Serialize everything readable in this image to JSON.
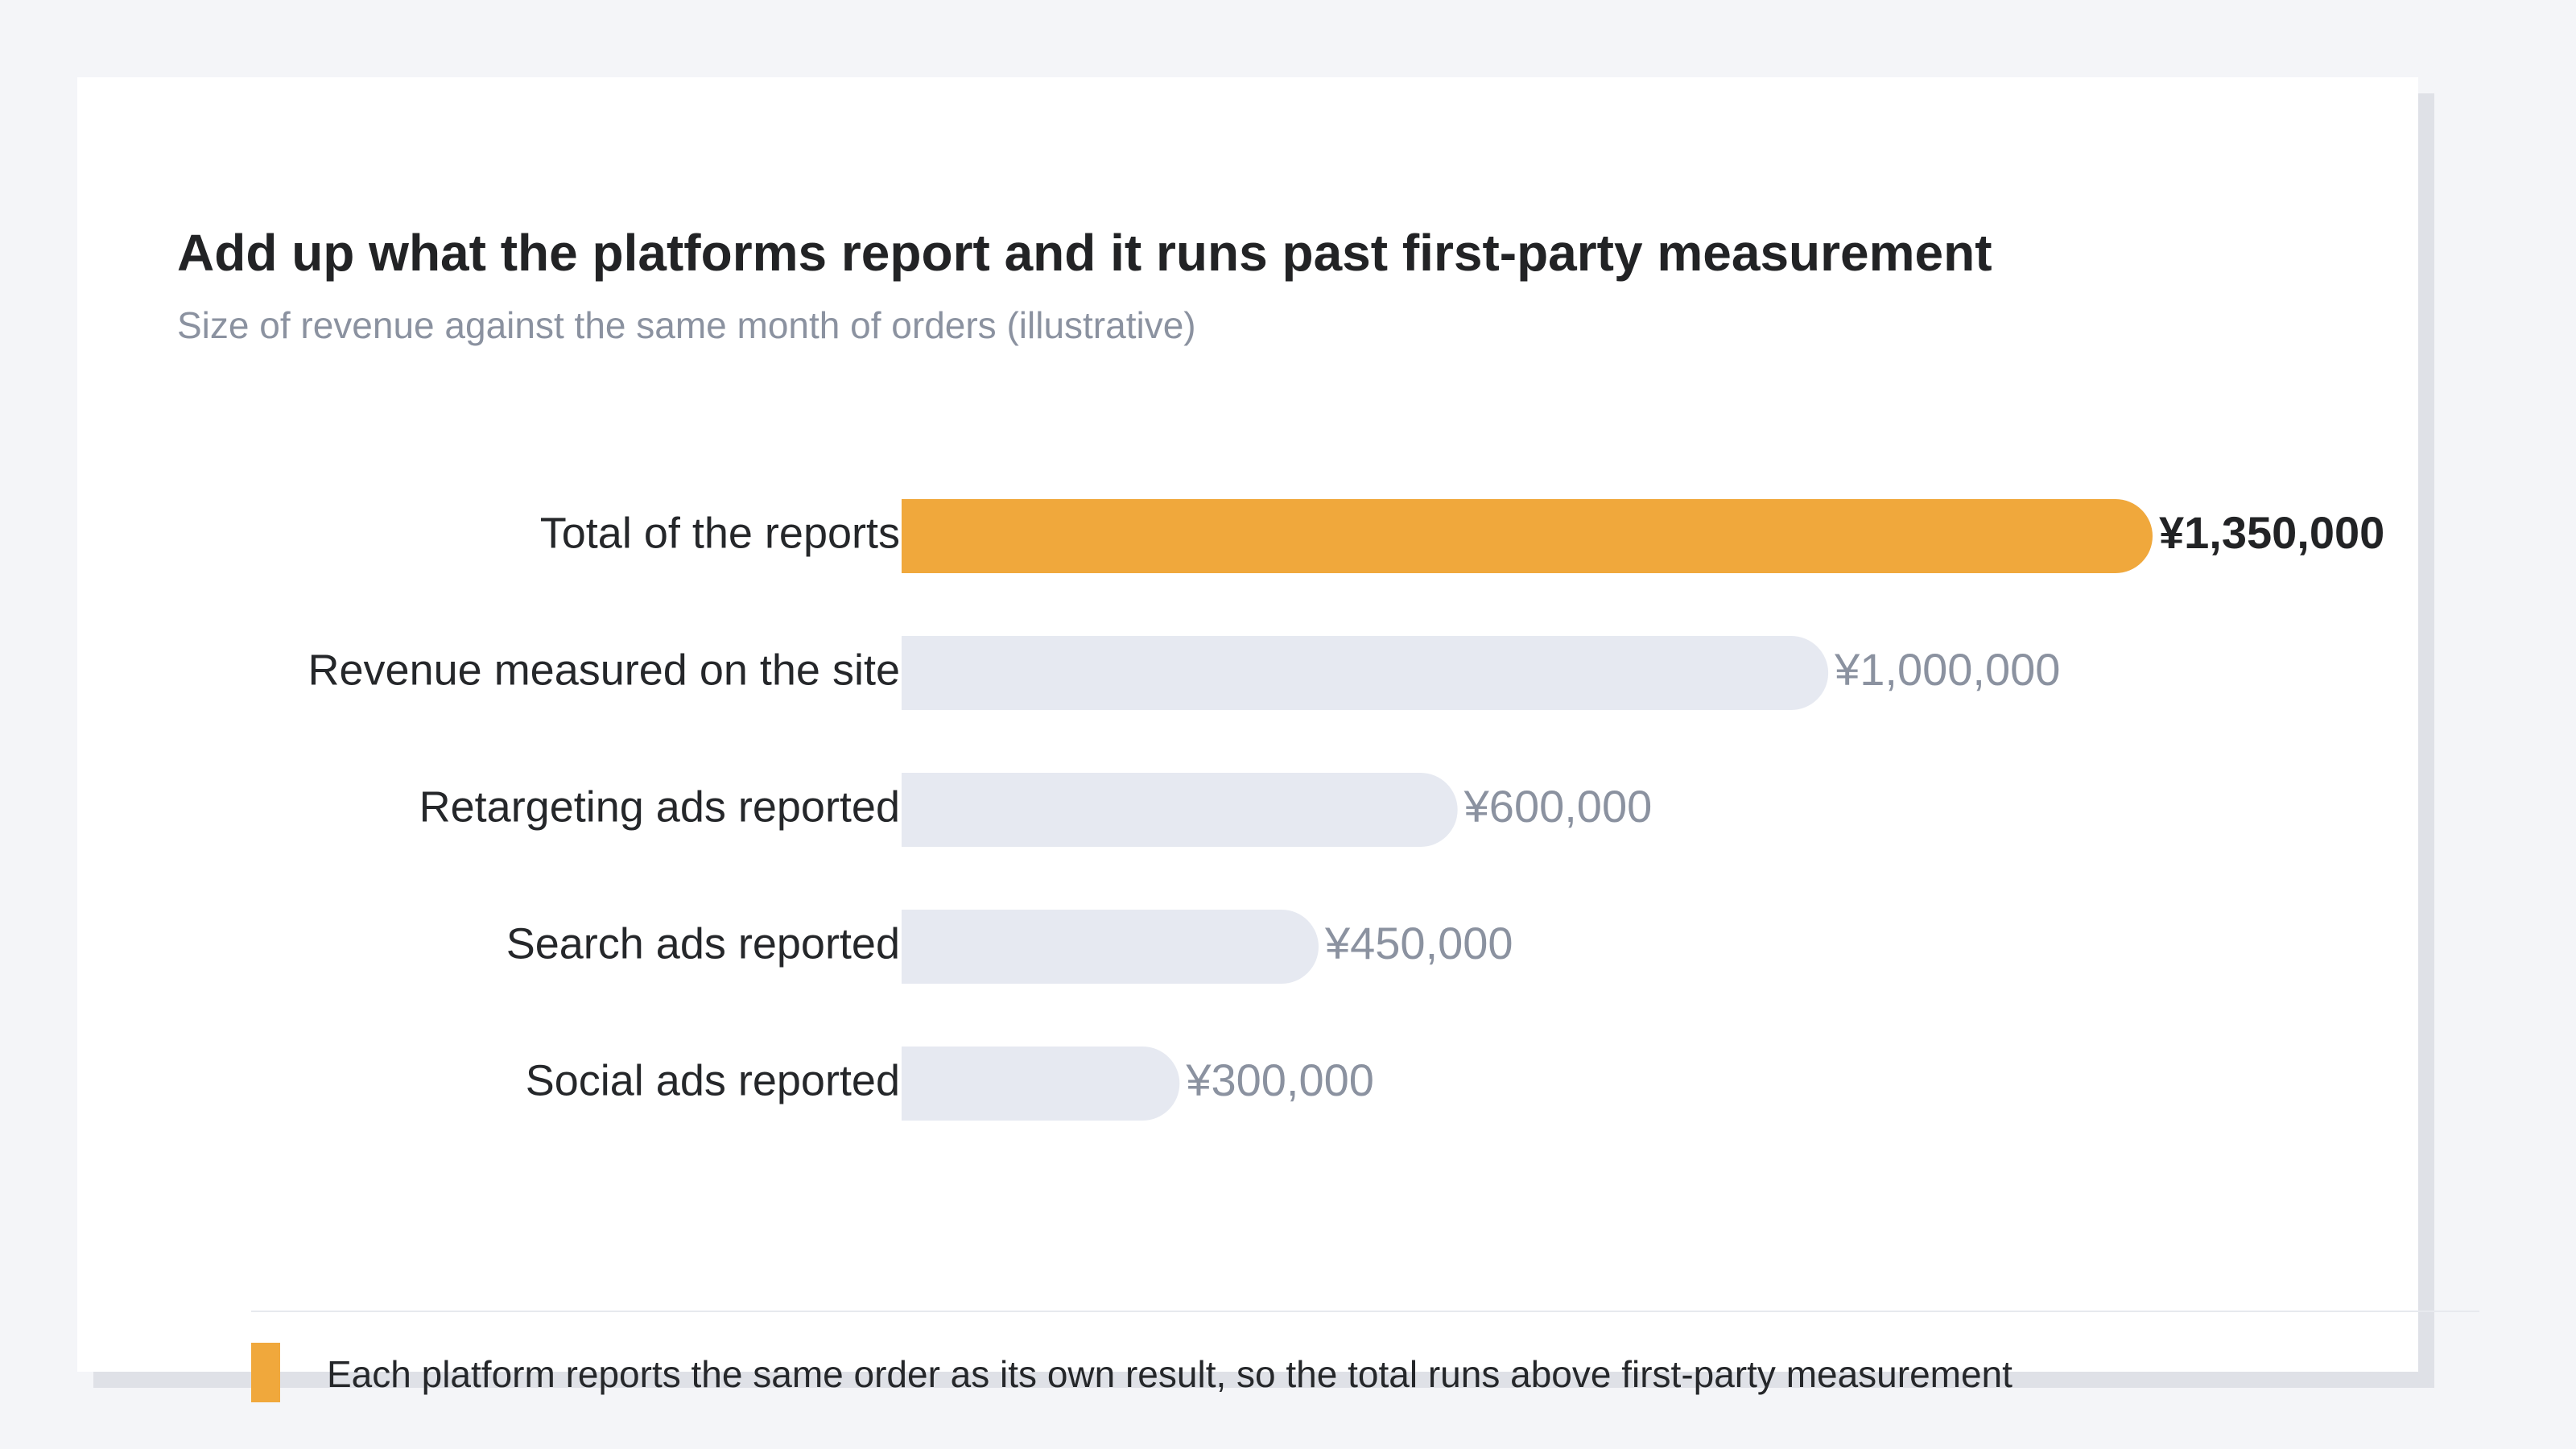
{
  "chart_data": {
    "type": "bar",
    "orientation": "horizontal",
    "title": "Add up what the platforms report and it runs past first-party measurement",
    "subtitle": "Size of revenue against the same month of orders (illustrative)",
    "categories": [
      "Total of the reports",
      "Revenue measured on the site",
      "Retargeting ads reported",
      "Search ads reported",
      "Social ads reported"
    ],
    "values": [
      1350000,
      1000000,
      600000,
      450000,
      300000
    ],
    "value_labels": [
      "¥1,350,000",
      "¥1,000,000",
      "¥600,000",
      "¥450,000",
      "¥300,000"
    ],
    "highlight_index": 0,
    "xlim": [
      0,
      1350000
    ],
    "grid": false,
    "xlabel": "",
    "ylabel": ""
  },
  "colors": {
    "highlight": "#f0a83c",
    "muted": "#e6e9f1",
    "label_text": "#25272a",
    "muted_value_text": "#8b92a0",
    "highlight_value_text": "#222325"
  },
  "legend": {
    "swatch_color": "#f0a83c",
    "text": "Each platform reports the same order as its own result, so the total runs above first-party measurement"
  }
}
